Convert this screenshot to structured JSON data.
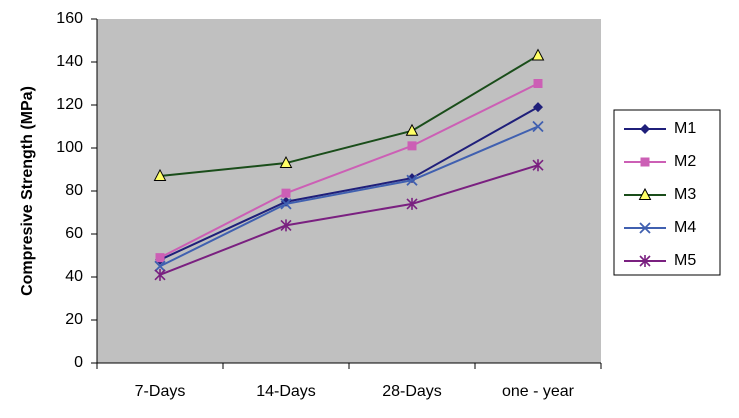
{
  "chart_data": {
    "type": "line",
    "y_label": "Compresive Strength (MPa)",
    "categories": [
      "7-Days",
      "14-Days",
      "28-Days",
      "one - year"
    ],
    "series": [
      {
        "name": "M1",
        "color": "#1f1f7a",
        "marker": "diamond",
        "values": [
          48,
          75,
          86,
          119
        ]
      },
      {
        "name": "M2",
        "color": "#cc5fb5",
        "marker": "square",
        "values": [
          49,
          79,
          101,
          130
        ]
      },
      {
        "name": "M3",
        "color": "#1a4d1a",
        "marker": "triangle",
        "marker_fill": "#ffff66",
        "values": [
          87,
          93,
          108,
          143
        ]
      },
      {
        "name": "M4",
        "color": "#4060b0",
        "marker": "x",
        "values": [
          45,
          74,
          85,
          110
        ]
      },
      {
        "name": "M5",
        "color": "#7a2080",
        "marker": "star",
        "values": [
          41,
          64,
          74,
          92
        ]
      }
    ],
    "ylim": [
      0,
      160
    ],
    "yticks": [
      0,
      20,
      40,
      60,
      80,
      100,
      120,
      140,
      160
    ],
    "plot_background": "#c0c0c0",
    "grid": false,
    "legend": "right"
  }
}
